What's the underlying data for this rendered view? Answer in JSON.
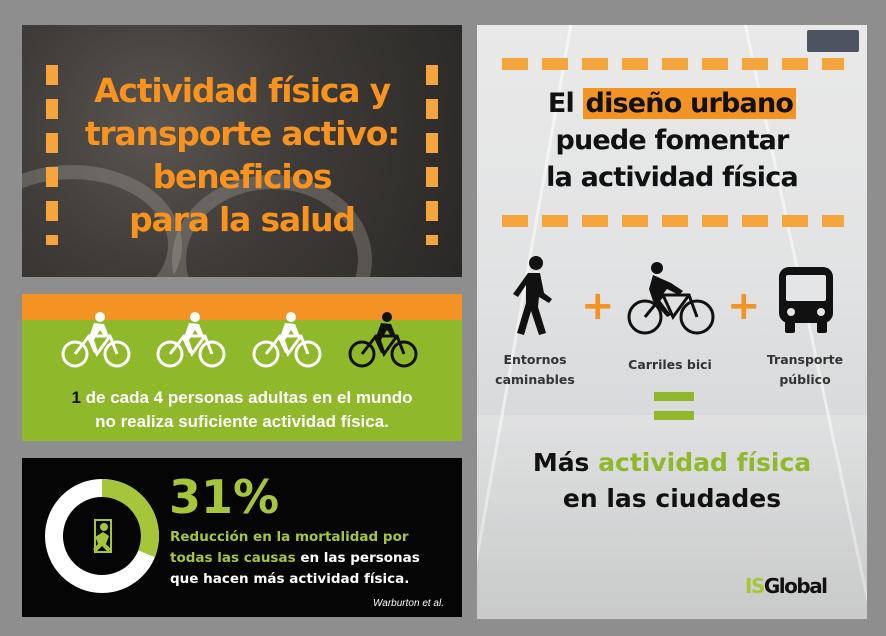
{
  "title_panel": {
    "line1": "Actividad física y",
    "line2": "transporte activo:",
    "line3": "beneficios",
    "line4": "para la salud"
  },
  "cyclists_panel": {
    "highlight_number": "1",
    "text_line1": " de cada 4 personas adultas en el mundo",
    "text_line2": "no realiza suficiente actividad física.",
    "icons": [
      "cyclist-icon",
      "cyclist-icon",
      "cyclist-icon",
      "cyclist-icon"
    ],
    "colors": {
      "active": "#ffffff",
      "inactive": "#111111"
    }
  },
  "stat_panel": {
    "percent": "31%",
    "donut_fraction": 0.31,
    "desc_green1": "Reducción en la mortalidad por",
    "desc_green2": "todas las causas",
    "desc_white1": " en las personas",
    "desc_white2": "que hacen más actividad física.",
    "citation": "Warburton et al."
  },
  "right_panel": {
    "heading_pre": "El ",
    "heading_hl": "diseño urbano",
    "heading_line2": "puede fomentar",
    "heading_line3": "la actividad física",
    "items": [
      {
        "icon": "walking-person-icon",
        "label1": "Entornos",
        "label2": "caminables"
      },
      {
        "icon": "cyclist-icon",
        "label1": "Carriles bici",
        "label2": ""
      },
      {
        "icon": "bus-icon",
        "label1": "Transporte",
        "label2": "público"
      }
    ],
    "plus": "+",
    "result_pre": "Más ",
    "result_green": "actividad física",
    "result_line2": "en las ciudades",
    "logo_is": "IS",
    "logo_global": "Global"
  },
  "colors": {
    "orange": "#f39323",
    "green": "#8fb82a",
    "lime": "#a5c63b"
  }
}
